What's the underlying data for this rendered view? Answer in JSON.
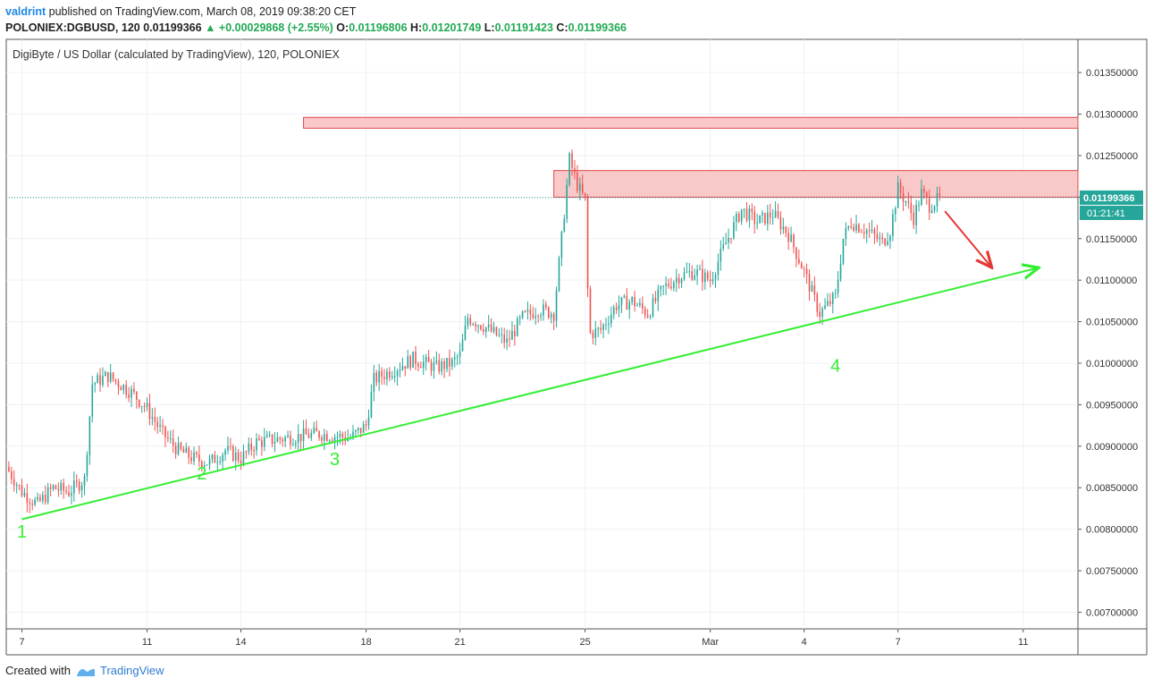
{
  "header": {
    "author": "valdrint",
    "published": "published on TradingView.com, March 08, 2019 09:38:20 CET"
  },
  "ohlc": {
    "symbol": "POLONIEX:DGBUSD, 120",
    "last": "0.01199366",
    "change": "+0.00029868 (+2.55%)",
    "o_label": "O:",
    "o": "0.01196806",
    "h_label": "H:",
    "h": "0.01201749",
    "l_label": "L:",
    "l": "0.01191423",
    "c_label": "C:",
    "c": "0.01199366"
  },
  "footer": {
    "created_with": "Created with",
    "brand": "TradingView"
  },
  "colors": {
    "up": "#26a69a",
    "down": "#ef5350",
    "trend": "#33ee33",
    "arrow": "#e53935",
    "zone_fill": "#f9c9c9",
    "zone_border": "#e04848",
    "price_tag": "#26a69a"
  },
  "chart_data": {
    "type": "candlestick",
    "title": "DigiByte / US Dollar (calculated by TradingView), 120, POLONIEX",
    "ylim": [
      0.0068,
      0.0139
    ],
    "yticks": [
      "0.01350000",
      "0.01300000",
      "0.01250000",
      "0.01200000",
      "0.01150000",
      "0.01100000",
      "0.01050000",
      "0.01000000",
      "0.00950000",
      "0.00900000",
      "0.00850000",
      "0.00800000",
      "0.00750000",
      "0.00700000"
    ],
    "xlim": [
      "Feb 6 12:00",
      "Mar 12 18:00"
    ],
    "xticks": [
      {
        "label": "7",
        "date": "Feb 7"
      },
      {
        "label": "11",
        "date": "Feb 11"
      },
      {
        "label": "14",
        "date": "Feb 14"
      },
      {
        "label": "18",
        "date": "Feb 18"
      },
      {
        "label": "21",
        "date": "Feb 21"
      },
      {
        "label": "25",
        "date": "Feb 25"
      },
      {
        "label": "Mar",
        "date": "Mar 1"
      },
      {
        "label": "4",
        "date": "Mar 4"
      },
      {
        "label": "7",
        "date": "Mar 7"
      },
      {
        "label": "11",
        "date": "Mar 11"
      }
    ],
    "price_path": [
      {
        "date": "Feb 6 12:00",
        "price": 0.00875
      },
      {
        "date": "Feb 7",
        "price": 0.00845
      },
      {
        "date": "Feb 7 12:00",
        "price": 0.0083
      },
      {
        "date": "Feb 8",
        "price": 0.0085
      },
      {
        "date": "Feb 8 12:00",
        "price": 0.00845
      },
      {
        "date": "Feb 9",
        "price": 0.0086
      },
      {
        "date": "Feb 9 06:00",
        "price": 0.00975
      },
      {
        "date": "Feb 9 18:00",
        "price": 0.00985
      },
      {
        "date": "Feb 10 12:00",
        "price": 0.00965
      },
      {
        "date": "Feb 11",
        "price": 0.00945
      },
      {
        "date": "Feb 11 12:00",
        "price": 0.00915
      },
      {
        "date": "Feb 12",
        "price": 0.00895
      },
      {
        "date": "Feb 12 12:00",
        "price": 0.00885
      },
      {
        "date": "Feb 13",
        "price": 0.0088
      },
      {
        "date": "Feb 13 12:00",
        "price": 0.00895
      },
      {
        "date": "Feb 14",
        "price": 0.00885
      },
      {
        "date": "Feb 14 12:00",
        "price": 0.00905
      },
      {
        "date": "Feb 15 12:00",
        "price": 0.0091
      },
      {
        "date": "Feb 16 12:00",
        "price": 0.00915
      },
      {
        "date": "Feb 17 12:00",
        "price": 0.0091
      },
      {
        "date": "Feb 18",
        "price": 0.00925
      },
      {
        "date": "Feb 18 06:00",
        "price": 0.0098
      },
      {
        "date": "Feb 18 18:00",
        "price": 0.0099
      },
      {
        "date": "Feb 19 12:00",
        "price": 0.01005
      },
      {
        "date": "Feb 20 06:00",
        "price": 0.00995
      },
      {
        "date": "Feb 20 18:00",
        "price": 0.01
      },
      {
        "date": "Feb 21",
        "price": 0.0101
      },
      {
        "date": "Feb 21 06:00",
        "price": 0.01055
      },
      {
        "date": "Feb 21 18:00",
        "price": 0.01045
      },
      {
        "date": "Feb 22 12:00",
        "price": 0.01025
      },
      {
        "date": "Feb 23",
        "price": 0.01055
      },
      {
        "date": "Feb 23 12:00",
        "price": 0.01065
      },
      {
        "date": "Feb 24",
        "price": 0.0106
      },
      {
        "date": "Feb 24 06:00",
        "price": 0.0115
      },
      {
        "date": "Feb 24 12:00",
        "price": 0.01245
      },
      {
        "date": "Feb 24 18:00",
        "price": 0.01215
      },
      {
        "date": "Feb 25",
        "price": 0.01195
      },
      {
        "date": "Feb 25 03:00",
        "price": 0.01035
      },
      {
        "date": "Feb 25 12:00",
        "price": 0.0104
      },
      {
        "date": "Feb 26",
        "price": 0.0107
      },
      {
        "date": "Feb 26 12:00",
        "price": 0.01075
      },
      {
        "date": "Feb 27",
        "price": 0.0106
      },
      {
        "date": "Feb 27 12:00",
        "price": 0.0109
      },
      {
        "date": "Feb 28",
        "price": 0.01105
      },
      {
        "date": "Feb 28 12:00",
        "price": 0.0111
      },
      {
        "date": "Mar 1",
        "price": 0.011
      },
      {
        "date": "Mar 1 12:00",
        "price": 0.01145
      },
      {
        "date": "Mar 2",
        "price": 0.01185
      },
      {
        "date": "Mar 2 12:00",
        "price": 0.0117
      },
      {
        "date": "Mar 3",
        "price": 0.0118
      },
      {
        "date": "Mar 3 12:00",
        "price": 0.01155
      },
      {
        "date": "Mar 4",
        "price": 0.0111
      },
      {
        "date": "Mar 4 12:00",
        "price": 0.0106
      },
      {
        "date": "Mar 5",
        "price": 0.0108
      },
      {
        "date": "Mar 5 06:00",
        "price": 0.0115
      },
      {
        "date": "Mar 5 12:00",
        "price": 0.0117
      },
      {
        "date": "Mar 6",
        "price": 0.0116
      },
      {
        "date": "Mar 6 12:00",
        "price": 0.01145
      },
      {
        "date": "Mar 6 18:00",
        "price": 0.0116
      },
      {
        "date": "Mar 7",
        "price": 0.0121
      },
      {
        "date": "Mar 7 06:00",
        "price": 0.01195
      },
      {
        "date": "Mar 7 12:00",
        "price": 0.01175
      },
      {
        "date": "Mar 7 18:00",
        "price": 0.01205
      },
      {
        "date": "Mar 8",
        "price": 0.0119
      },
      {
        "date": "Mar 8 09:00",
        "price": 0.01199
      }
    ],
    "last_price_label": "0.01199366",
    "countdown": "01:21:41",
    "resistance_zones": [
      {
        "from": "Feb 16",
        "to": "Mar 12 18:00",
        "low": 0.01283,
        "high": 0.01296
      },
      {
        "from": "Feb 24",
        "to": "Mar 12 18:00",
        "low": 0.012,
        "high": 0.01232
      }
    ],
    "trendline": {
      "start": {
        "date": "Feb 7",
        "price": 0.00812
      },
      "end": {
        "date": "Mar 11 12:00",
        "price": 0.01115
      }
    },
    "down_arrow": {
      "start": {
        "date": "Mar 8 12:00",
        "price": 0.01183
      },
      "end": {
        "date": "Mar 10",
        "price": 0.01115
      }
    },
    "annotations": [
      {
        "text": "1",
        "date": "Feb 7",
        "price": 0.0079
      },
      {
        "text": "2",
        "date": "Feb 12 18:00",
        "price": 0.0086
      },
      {
        "text": "3",
        "date": "Feb 17",
        "price": 0.00877
      },
      {
        "text": "4",
        "date": "Mar 5",
        "price": 0.0099
      }
    ]
  }
}
